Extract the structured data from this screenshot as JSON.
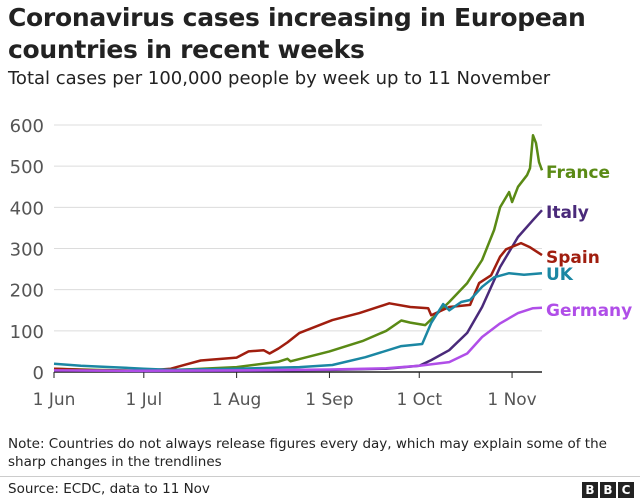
{
  "title": "Coronavirus cases increasing in European countries in recent weeks",
  "subtitle": "Total cases per 100,000 people by week up to 11 November",
  "note": "Note: Countries do not always release figures every day, which may explain some of the sharp changes in the trendlines",
  "source": "Source: ECDC, data to 11 Nov",
  "logo": "BBC",
  "chart_data": {
    "type": "line",
    "title": "Coronavirus cases increasing in European countries in recent weeks",
    "subtitle": "Total cases per 100,000 people by week up to 11 November",
    "xlabel": "",
    "ylabel": "",
    "ylim": [
      0,
      600
    ],
    "yticks": [
      0,
      100,
      200,
      300,
      400,
      500,
      600
    ],
    "xlim": [
      "Jun 1",
      "Nov 11"
    ],
    "xticks": [
      {
        "date": "Jun 1",
        "label": "1 Jun"
      },
      {
        "date": "Jul 1",
        "label": "1 Jul"
      },
      {
        "date": "Aug 1",
        "label": "1 Aug"
      },
      {
        "date": "Sep 1",
        "label": "1 Sep"
      },
      {
        "date": "Oct 1",
        "label": "1 Oct"
      },
      {
        "date": "Nov 1",
        "label": "1 Nov"
      }
    ],
    "grid": true,
    "legend": "inline labels at line ends",
    "series": [
      {
        "name": "France",
        "color": "#5a8a15",
        "points": [
          [
            "Jun 1",
            8
          ],
          [
            "Jun 15",
            5
          ],
          [
            "Jul 1",
            3
          ],
          [
            "Jul 15",
            6
          ],
          [
            "Aug 1",
            12
          ],
          [
            "Aug 15",
            25
          ],
          [
            "Aug 18",
            32
          ],
          [
            "Aug 19",
            26
          ],
          [
            "Sep 1",
            50
          ],
          [
            "Sep 12",
            75
          ],
          [
            "Sep 20",
            100
          ],
          [
            "Sep 25",
            125
          ],
          [
            "Sep 28",
            120
          ],
          [
            "Oct 3",
            114
          ],
          [
            "Oct 11",
            170
          ],
          [
            "Oct 17",
            216
          ],
          [
            "Oct 22",
            272
          ],
          [
            "Oct 26",
            345
          ],
          [
            "Oct 28",
            400
          ],
          [
            "Oct 31",
            437
          ],
          [
            "Nov 1",
            413
          ],
          [
            "Nov 3",
            450
          ],
          [
            "Nov 6",
            478
          ],
          [
            "Nov 7",
            495
          ],
          [
            "Nov 8",
            575
          ],
          [
            "Nov 9",
            556
          ],
          [
            "Nov 10",
            510
          ],
          [
            "Nov 11",
            490
          ]
        ]
      },
      {
        "name": "Italy",
        "color": "#4a2a7a",
        "points": [
          [
            "Jun 1",
            5
          ],
          [
            "Jun 15",
            3
          ],
          [
            "Jul 1",
            2
          ],
          [
            "Aug 1",
            3
          ],
          [
            "Sep 1",
            5
          ],
          [
            "Sep 20",
            8
          ],
          [
            "Oct 1",
            15
          ],
          [
            "Oct 5",
            29
          ],
          [
            "Oct 11",
            53
          ],
          [
            "Oct 17",
            95
          ],
          [
            "Oct 22",
            158
          ],
          [
            "Oct 28",
            255
          ],
          [
            "Nov 3",
            328
          ],
          [
            "Nov 8",
            369
          ],
          [
            "Nov 11",
            393
          ]
        ]
      },
      {
        "name": "Spain",
        "color": "#a01e0f",
        "points": [
          [
            "Jun 1",
            8
          ],
          [
            "Jun 15",
            4
          ],
          [
            "Jul 1",
            3
          ],
          [
            "Jul 10",
            8
          ],
          [
            "Jul 15",
            18
          ],
          [
            "Jul 20",
            28
          ],
          [
            "Aug 1",
            35
          ],
          [
            "Aug 5",
            50
          ],
          [
            "Aug 10",
            53
          ],
          [
            "Aug 12",
            45
          ],
          [
            "Aug 15",
            57
          ],
          [
            "Aug 18",
            72
          ],
          [
            "Aug 22",
            95
          ],
          [
            "Sep 2",
            126
          ],
          [
            "Sep 11",
            143
          ],
          [
            "Sep 21",
            167
          ],
          [
            "Sep 28",
            158
          ],
          [
            "Oct 4",
            155
          ],
          [
            "Oct 5",
            138
          ],
          [
            "Oct 11",
            158
          ],
          [
            "Oct 18",
            163
          ],
          [
            "Oct 21",
            216
          ],
          [
            "Oct 25",
            235
          ],
          [
            "Oct 28",
            280
          ],
          [
            "Oct 30",
            298
          ],
          [
            "Nov 4",
            313
          ],
          [
            "Nov 7",
            303
          ],
          [
            "Nov 11",
            284
          ]
        ]
      },
      {
        "name": "UK",
        "color": "#1b87a3",
        "points": [
          [
            "Jun 1",
            20
          ],
          [
            "Jun 10",
            15
          ],
          [
            "Jun 20",
            12
          ],
          [
            "Jul 1",
            8
          ],
          [
            "Jul 10",
            5
          ],
          [
            "Aug 1",
            8
          ],
          [
            "Aug 22",
            12
          ],
          [
            "Sep 2",
            17
          ],
          [
            "Sep 13",
            36
          ],
          [
            "Sep 25",
            63
          ],
          [
            "Oct 2",
            68
          ],
          [
            "Oct 5",
            119
          ],
          [
            "Oct 9",
            165
          ],
          [
            "Oct 11",
            150
          ],
          [
            "Oct 15",
            170
          ],
          [
            "Oct 18",
            175
          ],
          [
            "Oct 22",
            207
          ],
          [
            "Oct 26",
            230
          ],
          [
            "Oct 31",
            240
          ],
          [
            "Nov 5",
            236
          ],
          [
            "Nov 11",
            240
          ]
        ]
      },
      {
        "name": "Germany",
        "color": "#b04ee8",
        "points": [
          [
            "Jun 1",
            4
          ],
          [
            "Jul 1",
            3
          ],
          [
            "Aug 1",
            4
          ],
          [
            "Sep 1",
            6
          ],
          [
            "Sep 20",
            9
          ],
          [
            "Oct 1",
            15
          ],
          [
            "Oct 11",
            24
          ],
          [
            "Oct 17",
            45
          ],
          [
            "Oct 22",
            85
          ],
          [
            "Oct 28",
            118
          ],
          [
            "Nov 3",
            143
          ],
          [
            "Nov 8",
            155
          ],
          [
            "Nov 11",
            156
          ]
        ]
      }
    ]
  }
}
